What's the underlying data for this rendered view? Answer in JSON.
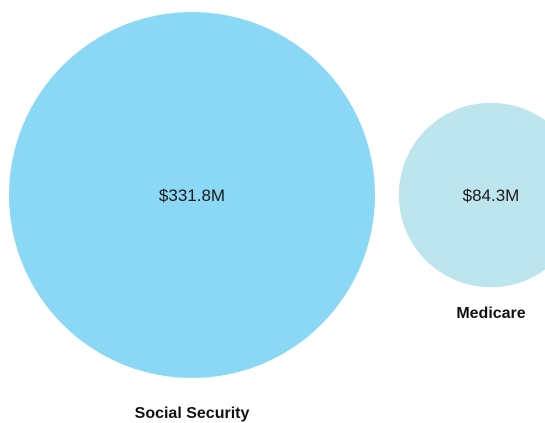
{
  "chart_data": {
    "type": "bubble",
    "title": "",
    "series": [
      {
        "name": "Social Security",
        "value": 331.8,
        "value_label": "$331.8M",
        "color": "#8ad8f5"
      },
      {
        "name": "Medicare",
        "value": 84.3,
        "value_label": "$84.3M",
        "color": "#bde5ed"
      }
    ],
    "unit": "$M"
  }
}
